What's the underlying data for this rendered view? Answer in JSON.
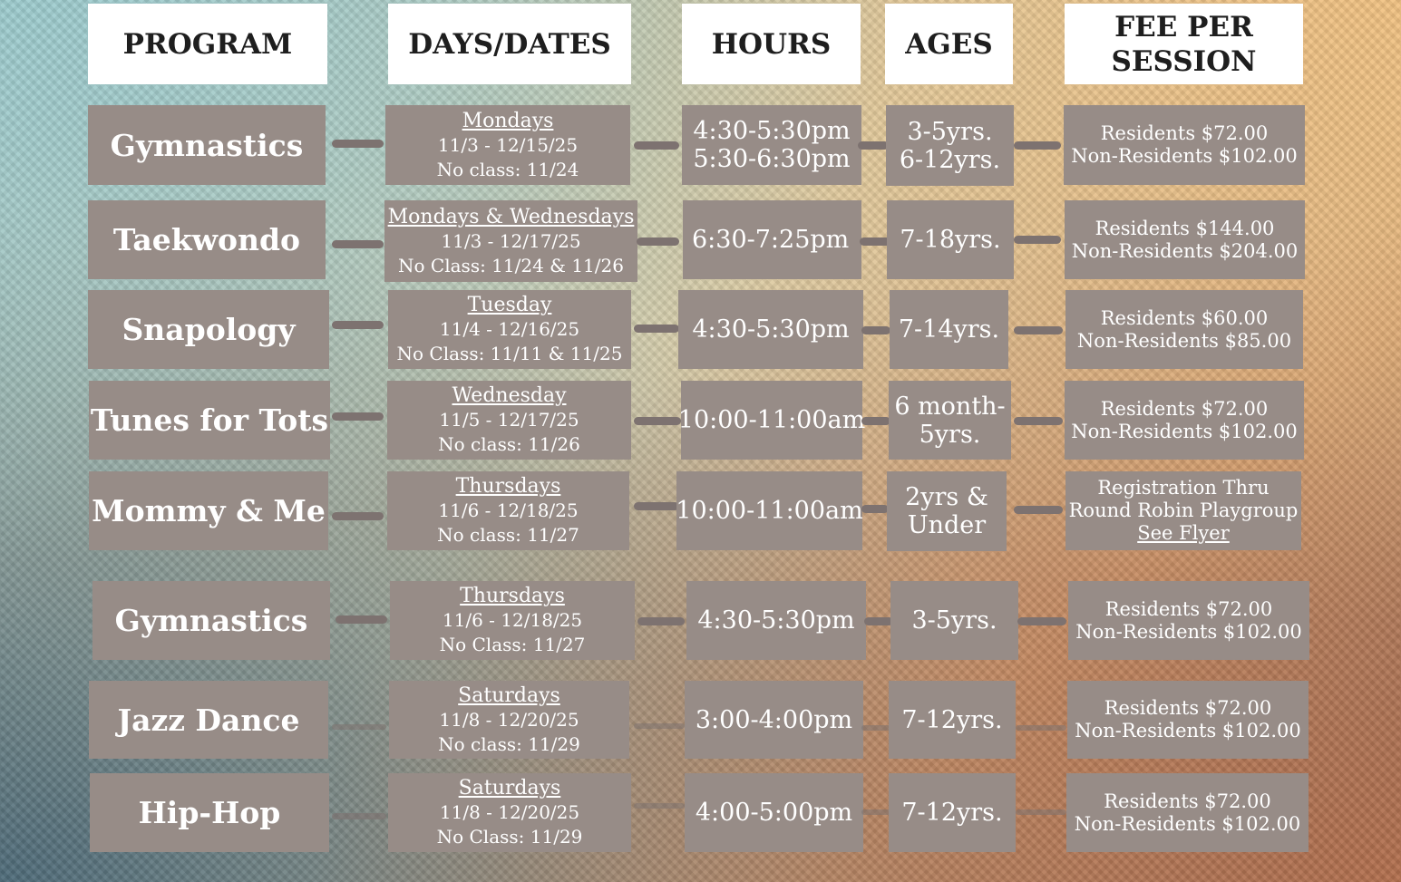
{
  "headers": {
    "program": "PROGRAM",
    "days_dates": "DAYS/DATES",
    "hours": "HOURS",
    "ages": "AGES",
    "fee_line1": "FEE PER",
    "fee_line2": "SESSION"
  },
  "rows": [
    {
      "program": "Gymnastics",
      "day": "Mondays",
      "dates": "11/3 - 12/15/25",
      "noclass": "No class: 11/24",
      "hours1": "4:30-5:30pm",
      "hours2": "5:30-6:30pm",
      "ages1": "3-5yrs.",
      "ages2": "6-12yrs.",
      "fee1": "Residents $72.00",
      "fee2": "Non-Residents $102.00"
    },
    {
      "program": "Taekwondo",
      "day": "Mondays & Wednesdays",
      "dates": "11/3 - 12/17/25",
      "noclass": "No Class: 11/24 & 11/26",
      "hours1": "6:30-7:25pm",
      "ages1": "7-18yrs.",
      "fee1": "Residents $144.00",
      "fee2": "Non-Residents $204.00"
    },
    {
      "program": "Snapology",
      "day": "Tuesday",
      "dates": "11/4 - 12/16/25",
      "noclass": "No Class:  11/11 & 11/25",
      "hours1": "4:30-5:30pm",
      "ages1": "7-14yrs.",
      "fee1": "Residents $60.00",
      "fee2": "Non-Residents $85.00"
    },
    {
      "program": "Tunes for Tots",
      "day": "Wednesday",
      "dates": "11/5 - 12/17/25",
      "noclass": "No class: 11/26",
      "hours1": "10:00-11:00am",
      "ages1": "6 month-",
      "ages2": "5yrs.",
      "fee1": "Residents $72.00",
      "fee2": "Non-Residents $102.00"
    },
    {
      "program": "Mommy & Me",
      "day": "Thursdays",
      "dates": "11/6 - 12/18/25",
      "noclass": "No class: 11/27",
      "hours1": "10:00-11:00am",
      "ages1": "2yrs &",
      "ages2": "Under",
      "fee1": "Registration Thru",
      "fee2": "Round Robin Playgroup",
      "fee3": "See Flyer"
    },
    {
      "program": "Gymnastics",
      "day": "Thursdays",
      "dates": "11/6 - 12/18/25",
      "noclass": "No Class: 11/27",
      "hours1": "4:30-5:30pm",
      "ages1": "3-5yrs.",
      "fee1": "Residents $72.00",
      "fee2": "Non-Residents $102.00"
    },
    {
      "program": "Jazz Dance",
      "day": "Saturdays",
      "dates": "11/8 - 12/20/25",
      "noclass": "No class: 11/29",
      "hours1": "3:00-4:00pm",
      "ages1": "7-12yrs.",
      "fee1": "Residents $72.00",
      "fee2": "Non-Residents $102.00"
    },
    {
      "program": "Hip-Hop",
      "day": "Saturdays",
      "dates": "11/8 - 12/20/25",
      "noclass": "No Class: 11/29",
      "hours1": "4:00-5:00pm",
      "ages1": "7-12yrs.",
      "fee1": "Residents $72.00",
      "fee2": "Non-Residents $102.00"
    }
  ]
}
